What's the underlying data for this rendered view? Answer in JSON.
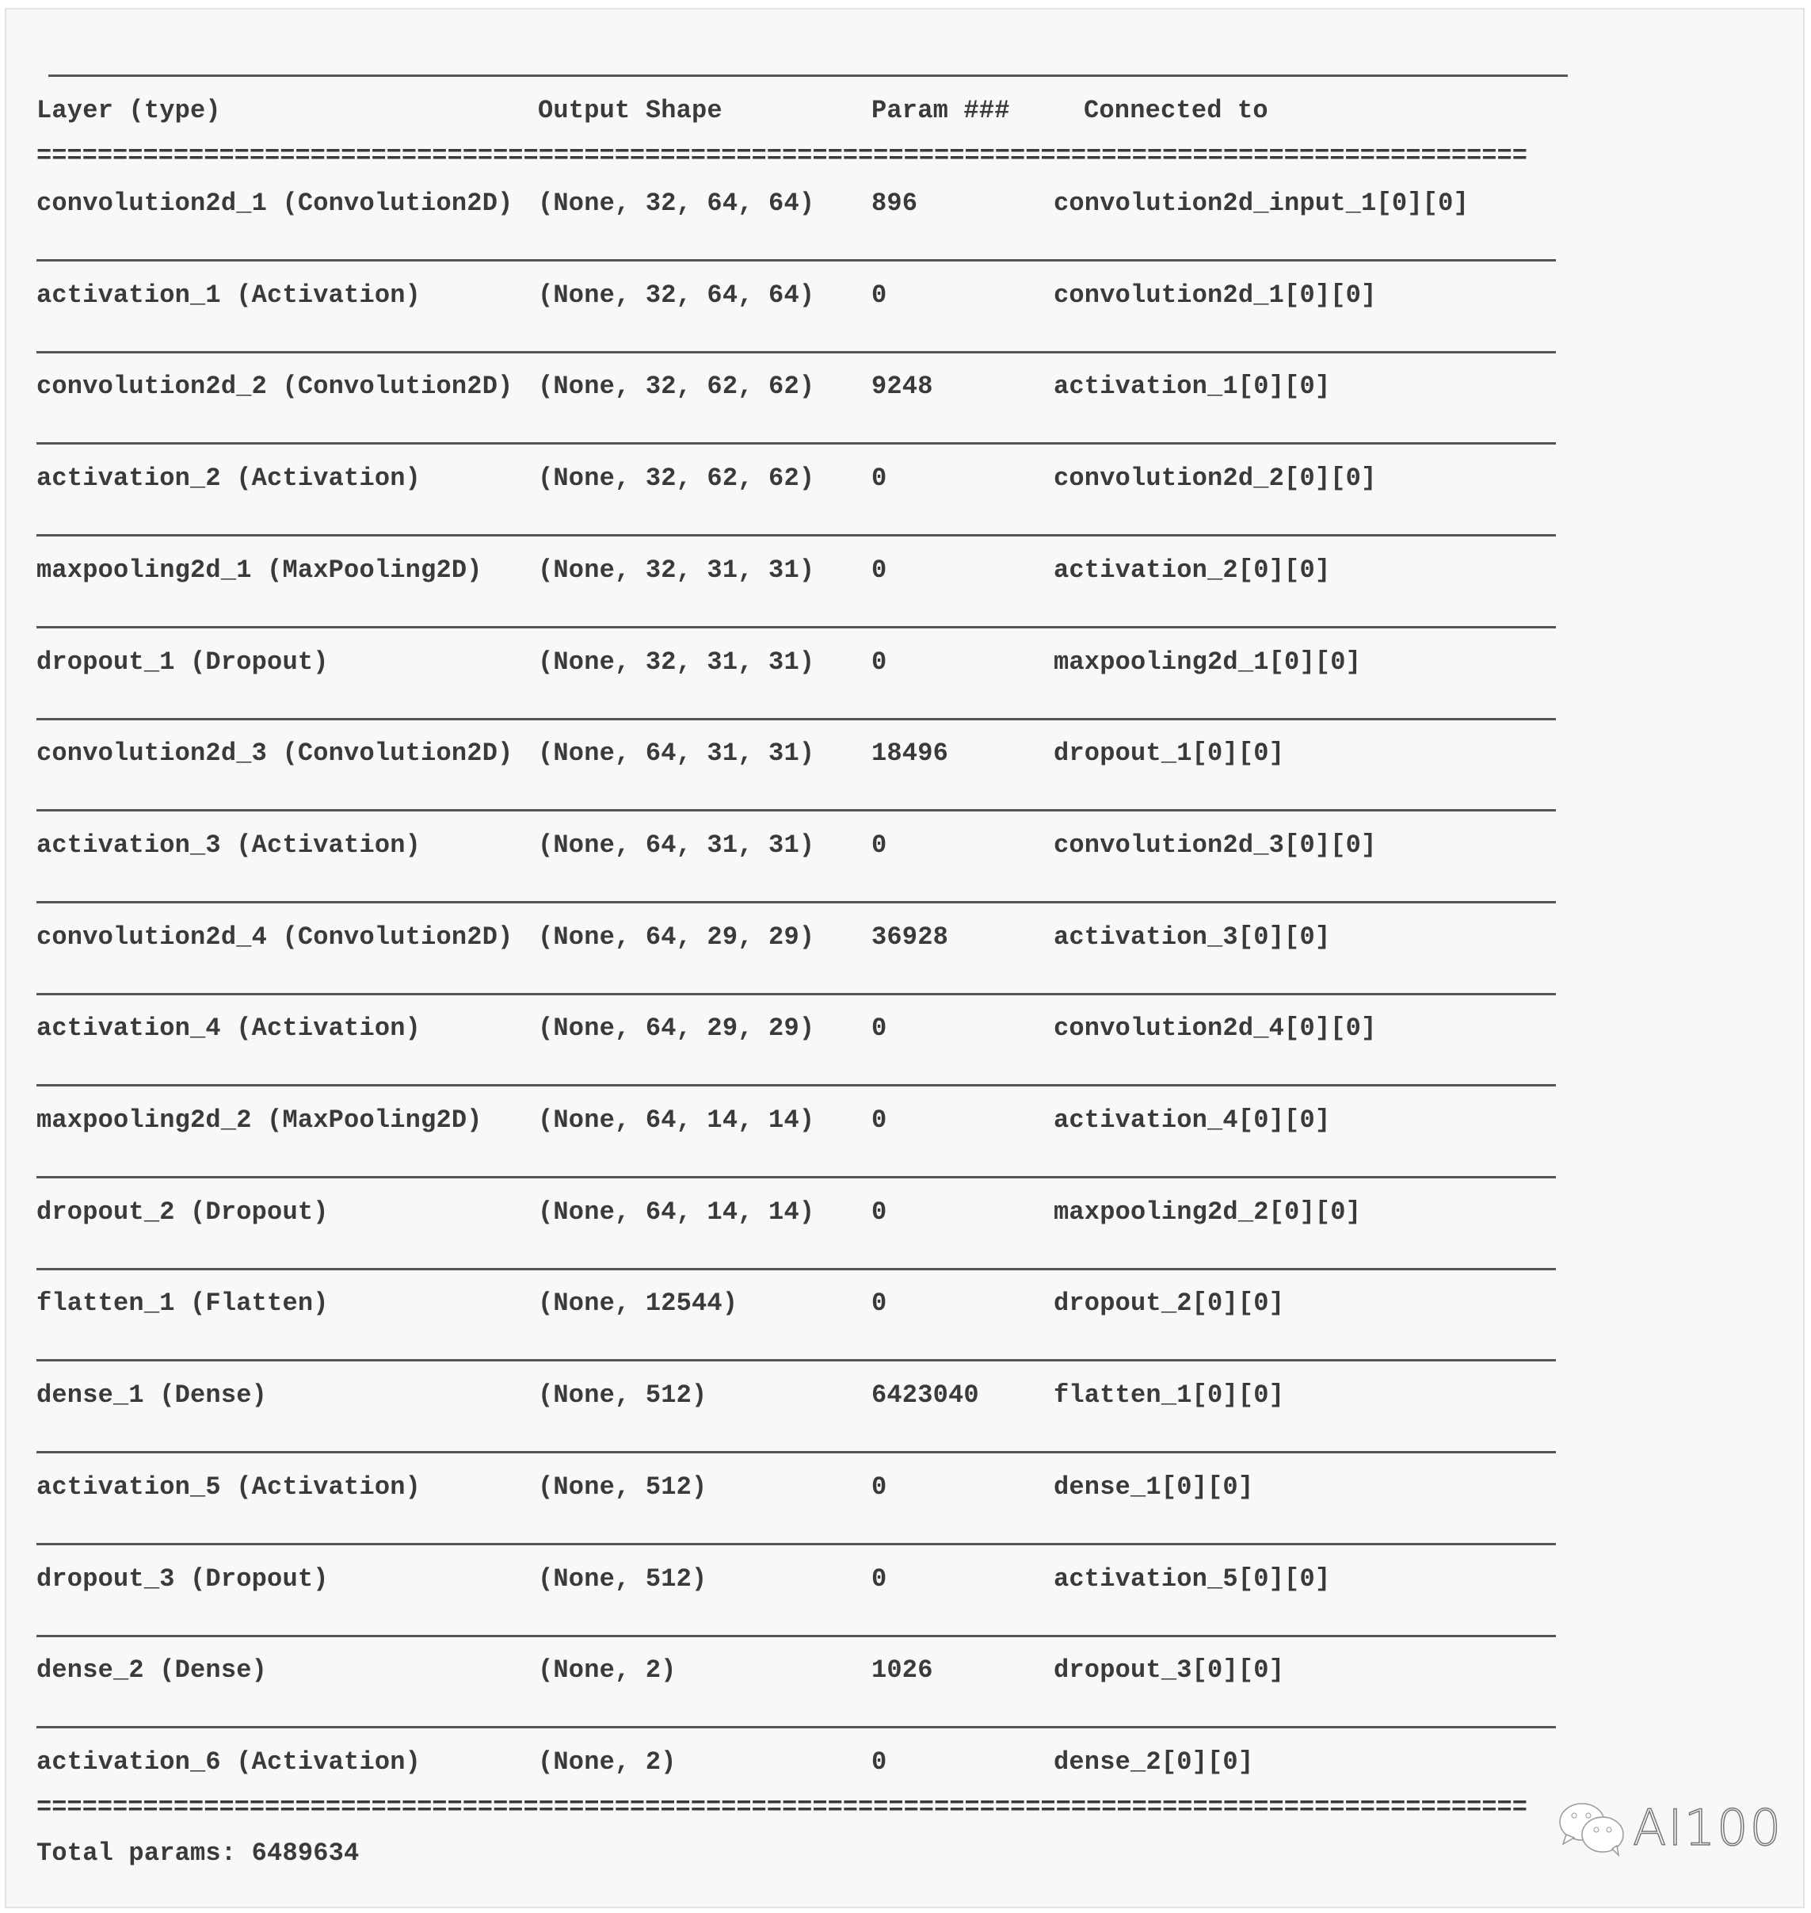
{
  "header": {
    "layer": "Layer (type)",
    "output": "Output Shape",
    "param": "Param ###",
    "connected": "Connected to"
  },
  "double_rule": "==================================================================================================",
  "rows": [
    {
      "layer": "convolution2d_1 (Convolution2D)",
      "output": "(None, 32, 64, 64)",
      "param": "896",
      "connected": "convolution2d_input_1[0][0]"
    },
    {
      "layer": "activation_1 (Activation)",
      "output": "(None, 32, 64, 64)",
      "param": "0",
      "connected": "convolution2d_1[0][0]"
    },
    {
      "layer": "convolution2d_2 (Convolution2D)",
      "output": "(None, 32, 62, 62)",
      "param": "9248",
      "connected": "activation_1[0][0]"
    },
    {
      "layer": "activation_2 (Activation)",
      "output": "(None, 32, 62, 62)",
      "param": "0",
      "connected": "convolution2d_2[0][0]"
    },
    {
      "layer": "maxpooling2d_1 (MaxPooling2D)",
      "output": "(None, 32, 31, 31)",
      "param": "0",
      "connected": "activation_2[0][0]"
    },
    {
      "layer": "dropout_1 (Dropout)",
      "output": "(None, 32, 31, 31)",
      "param": "0",
      "connected": "maxpooling2d_1[0][0]"
    },
    {
      "layer": "convolution2d_3 (Convolution2D)",
      "output": "(None, 64, 31, 31)",
      "param": "18496",
      "connected": "dropout_1[0][0]"
    },
    {
      "layer": "activation_3 (Activation)",
      "output": "(None, 64, 31, 31)",
      "param": "0",
      "connected": "convolution2d_3[0][0]"
    },
    {
      "layer": "convolution2d_4 (Convolution2D)",
      "output": "(None, 64, 29, 29)",
      "param": "36928",
      "connected": "activation_3[0][0]"
    },
    {
      "layer": "activation_4 (Activation)",
      "output": "(None, 64, 29, 29)",
      "param": "0",
      "connected": "convolution2d_4[0][0]"
    },
    {
      "layer": "maxpooling2d_2 (MaxPooling2D)",
      "output": "(None, 64, 14, 14)",
      "param": "0",
      "connected": "activation_4[0][0]"
    },
    {
      "layer": "dropout_2 (Dropout)",
      "output": "(None, 64, 14, 14)",
      "param": "0",
      "connected": "maxpooling2d_2[0][0]"
    },
    {
      "layer": "flatten_1 (Flatten)",
      "output": "(None, 12544)",
      "param": "0",
      "connected": "dropout_2[0][0]"
    },
    {
      "layer": "dense_1 (Dense)",
      "output": "(None, 512)",
      "param": "6423040",
      "connected": "flatten_1[0][0]"
    },
    {
      "layer": "activation_5 (Activation)",
      "output": "(None, 512)",
      "param": "0",
      "connected": "dense_1[0][0]"
    },
    {
      "layer": "dropout_3 (Dropout)",
      "output": "(None, 512)",
      "param": "0",
      "connected": "activation_5[0][0]"
    },
    {
      "layer": "dense_2 (Dense)",
      "output": "(None, 2)",
      "param": "1026",
      "connected": "dropout_3[0][0]"
    },
    {
      "layer": "activation_6 (Activation)",
      "output": "(None, 2)",
      "param": "0",
      "connected": "dense_2[0][0]"
    }
  ],
  "total": "Total params: 6489634",
  "watermark": {
    "icon": "wechat-icon",
    "text": "AI100"
  }
}
